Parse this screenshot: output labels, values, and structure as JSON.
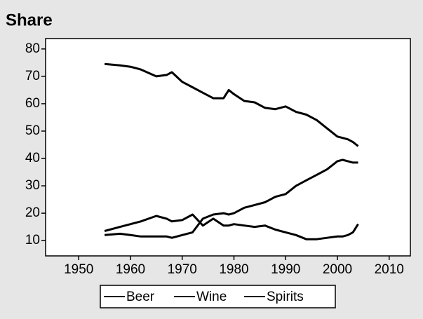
{
  "chart_data": {
    "type": "line",
    "title": "Share",
    "x": [
      1955,
      1958,
      1960,
      1962,
      1965,
      1967,
      1968,
      1970,
      1972,
      1974,
      1976,
      1978,
      1979,
      1980,
      1982,
      1984,
      1986,
      1988,
      1990,
      1992,
      1994,
      1996,
      1998,
      2000,
      2001,
      2002,
      2003,
      2004
    ],
    "series": [
      {
        "name": "Beer",
        "color": "#000000",
        "values": [
          74.5,
          74,
          73.5,
          72.5,
          70,
          70.5,
          71.5,
          68,
          66,
          64,
          62,
          62,
          65,
          63.5,
          61,
          60.5,
          58.5,
          58,
          59,
          57,
          56,
          54,
          51,
          48,
          47.5,
          47,
          46,
          44.5
        ]
      },
      {
        "name": "Wine",
        "color": "#000000",
        "values": [
          12,
          12.5,
          12,
          11.5,
          11.5,
          11.5,
          11,
          12,
          13,
          18,
          19.5,
          20,
          19.5,
          20,
          22,
          23,
          24,
          26,
          27,
          30,
          32,
          34,
          36,
          39,
          39.5,
          39,
          38.5,
          38.5
        ]
      },
      {
        "name": "Spirits",
        "color": "#000000",
        "values": [
          13.5,
          15,
          16,
          17,
          19,
          18,
          17,
          17.5,
          19.5,
          15.5,
          18,
          15.5,
          15.5,
          16,
          15.5,
          15,
          15.5,
          14,
          13,
          12,
          10.5,
          10.5,
          11,
          11.5,
          11.5,
          12,
          13,
          16
        ]
      }
    ],
    "xlim": [
      1943.6,
      2014.1
    ],
    "xticks": [
      1950,
      1960,
      1970,
      1980,
      1990,
      2000,
      2010
    ],
    "ylim": [
      4.4,
      83.8
    ],
    "yticks": [
      10,
      20,
      30,
      40,
      50,
      60,
      70,
      80
    ],
    "legend": "bottom"
  }
}
